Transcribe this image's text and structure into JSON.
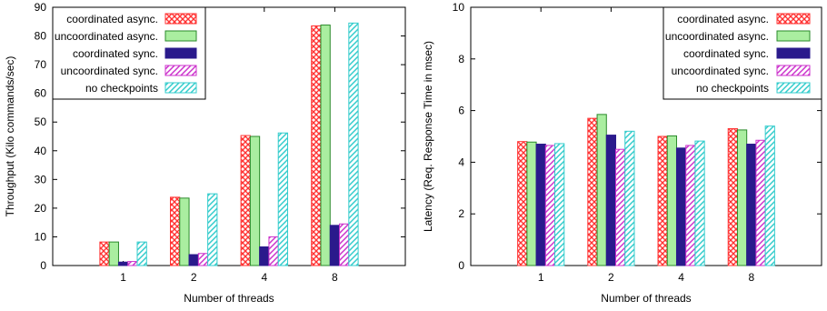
{
  "legend_labels": [
    "coordinated async.",
    "uncoordinated async.",
    "coordinated sync.",
    "uncoordinated sync.",
    "no checkpoints"
  ],
  "series_style": [
    {
      "color": "#ff3333",
      "pattern": "crosshatch"
    },
    {
      "color": "#33cc33",
      "pattern": "solid-light"
    },
    {
      "color": "#2a1a8c",
      "pattern": "solid"
    },
    {
      "color": "#cc33cc",
      "pattern": "diagonal"
    },
    {
      "color": "#33cccc",
      "pattern": "diagonal"
    }
  ],
  "chart_data": [
    {
      "type": "bar",
      "categories": [
        "1",
        "2",
        "4",
        "8"
      ],
      "xlabel": "Number of threads",
      "ylabel": "Throughput (Kilo commands/sec)",
      "ylim": [
        0,
        90
      ],
      "yticks": [
        0,
        10,
        20,
        30,
        40,
        50,
        60,
        70,
        80,
        90
      ],
      "legend_position": "top-left",
      "grid": false,
      "series": [
        {
          "name": "coordinated async.",
          "values": [
            8.2,
            23.8,
            45.3,
            83.5
          ]
        },
        {
          "name": "uncoordinated async.",
          "values": [
            8.2,
            23.5,
            45.0,
            83.8
          ]
        },
        {
          "name": "coordinated sync.",
          "values": [
            1.2,
            3.8,
            6.5,
            14.0
          ]
        },
        {
          "name": "uncoordinated sync.",
          "values": [
            1.4,
            4.2,
            10.0,
            14.5
          ]
        },
        {
          "name": "no checkpoints",
          "values": [
            8.2,
            25.0,
            46.2,
            84.5
          ]
        }
      ]
    },
    {
      "type": "bar",
      "categories": [
        "1",
        "2",
        "4",
        "8"
      ],
      "xlabel": "Number of threads",
      "ylabel": "Latency (Req. Response Time in msec)",
      "ylim": [
        0,
        10
      ],
      "yticks": [
        0,
        2,
        4,
        6,
        8,
        10
      ],
      "legend_position": "top-right",
      "grid": false,
      "series": [
        {
          "name": "coordinated async.",
          "values": [
            4.8,
            5.7,
            5.0,
            5.3
          ]
        },
        {
          "name": "uncoordinated async.",
          "values": [
            4.78,
            5.85,
            5.02,
            5.25
          ]
        },
        {
          "name": "coordinated sync.",
          "values": [
            4.7,
            5.05,
            4.55,
            4.7
          ]
        },
        {
          "name": "uncoordinated sync.",
          "values": [
            4.65,
            4.5,
            4.65,
            4.85
          ]
        },
        {
          "name": "no checkpoints",
          "values": [
            4.72,
            5.2,
            4.82,
            5.4
          ]
        }
      ]
    }
  ]
}
